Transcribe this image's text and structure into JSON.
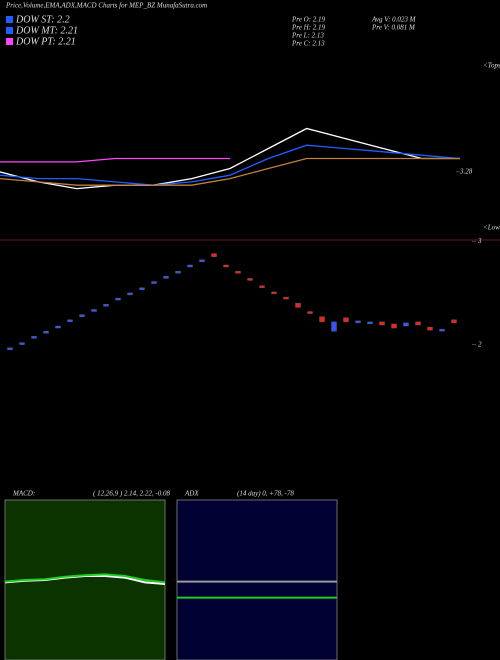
{
  "chart_data": [
    {
      "type": "line",
      "title": "Price,Volume,EMA,ADX,MACD Charts for MEP_BZ MunafaSutra.com",
      "legend": [
        {
          "text": "DOW ST: 2.2",
          "color": "#1f5fff"
        },
        {
          "text": "DOW MT: 2.21",
          "color": "#1f5fff"
        },
        {
          "text": "DOW PT: 2.21",
          "color": "#ff44ff"
        }
      ],
      "quotes": [
        "Pre  O: 2.19",
        "Pre  H: 2.19",
        "Pre  L: 2.13",
        "Pre  C: 2.13",
        "Avg V: 0.023 M",
        "Pre  V: 0.081 M"
      ],
      "annotations": [
        "<Tops",
        "<Lows"
      ],
      "ylim": [
        3.1,
        3.6
      ],
      "yticks": [
        3.28
      ],
      "series": [
        {
          "color": "#ffffff",
          "values": [
            3.28,
            3.25,
            3.23,
            3.24,
            3.24,
            3.26,
            3.29,
            3.35,
            3.41,
            3.38,
            3.35,
            3.32,
            3.32
          ]
        },
        {
          "color": "#1f5fff",
          "values": [
            3.27,
            3.26,
            3.26,
            3.25,
            3.24,
            3.25,
            3.27,
            3.32,
            3.36,
            3.35,
            3.34,
            3.33,
            3.32
          ]
        },
        {
          "color": "#c08040",
          "values": [
            3.26,
            3.25,
            3.24,
            3.24,
            3.24,
            3.24,
            3.26,
            3.29,
            3.32,
            3.32,
            3.32,
            3.32,
            3.32
          ]
        },
        {
          "color": "#ff44ff",
          "values": [
            3.31,
            3.31,
            3.31,
            3.32,
            3.32,
            3.32,
            3.32,
            null,
            null,
            null,
            null,
            null,
            null
          ]
        }
      ]
    },
    {
      "type": "candlestick",
      "ylim": [
        1.9,
        3.05
      ],
      "yticks": [
        2,
        3
      ],
      "up_color": "#3355ff",
      "down_color": "#ee2222",
      "open": [
        1.96,
        2.01,
        2.07,
        2.12,
        2.17,
        2.23,
        2.28,
        2.33,
        2.38,
        2.44,
        2.49,
        2.54,
        2.6,
        2.65,
        2.7,
        2.76,
        2.81,
        2.88,
        2.77,
        2.71,
        2.64,
        2.57,
        2.51,
        2.46,
        2.4,
        2.32,
        2.27,
        2.13,
        2.26,
        2.22,
        2.21,
        2.22,
        2.2,
        2.18,
        2.22,
        2.17,
        2.14,
        2.24
      ],
      "close": [
        1.97,
        2.02,
        2.08,
        2.13,
        2.18,
        2.24,
        2.29,
        2.34,
        2.39,
        2.45,
        2.5,
        2.55,
        2.61,
        2.66,
        2.71,
        2.77,
        2.82,
        2.85,
        2.76,
        2.7,
        2.63,
        2.56,
        2.5,
        2.45,
        2.36,
        2.31,
        2.22,
        2.22,
        2.22,
        2.23,
        2.22,
        2.19,
        2.16,
        2.21,
        2.19,
        2.14,
        2.15,
        2.21
      ]
    },
    {
      "type": "line",
      "title": "MACD:",
      "subtitle": "( 12,26,9 ) 2.14, 2.22, -0.08",
      "background": "#0a3300",
      "ylim": [
        -1,
        1
      ],
      "series": [
        {
          "color": "#ffffff",
          "values": [
            -0.03,
            -0.01,
            0,
            0.03,
            0.05,
            0.05,
            0.03,
            -0.03,
            -0.05
          ]
        },
        {
          "color": "#22cc22",
          "values": [
            -0.02,
            0,
            0.01,
            0.04,
            0.06,
            0.07,
            0.05,
            0,
            -0.03
          ]
        }
      ]
    },
    {
      "type": "line",
      "title": "ADX",
      "subtitle": "(14  day) 0, +78, -78",
      "background": "#000033",
      "ylim": [
        -20,
        180
      ],
      "series": [
        {
          "color": "#999999",
          "values": [
            78,
            78
          ]
        },
        {
          "color": "#22cc22",
          "values": [
            58,
            58
          ]
        }
      ]
    }
  ]
}
